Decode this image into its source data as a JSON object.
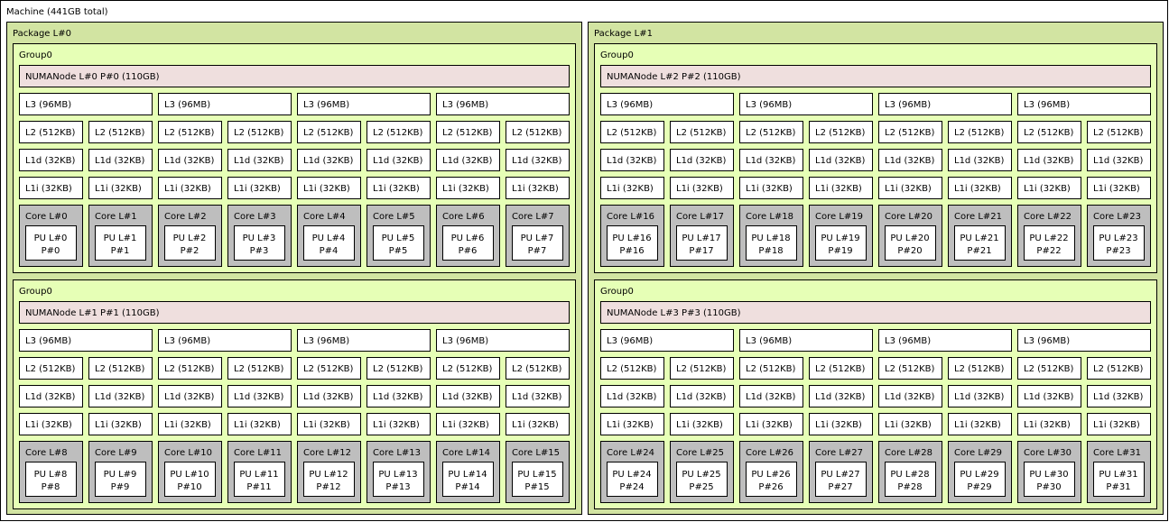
{
  "machine": {
    "label": "Machine (441GB total)",
    "packages": [
      {
        "label": "Package L#0",
        "groups": [
          {
            "label": "Group0",
            "numa": "NUMANode L#0 P#0 (110GB)",
            "l3": [
              "L3 (96MB)",
              "L3 (96MB)",
              "L3 (96MB)",
              "L3 (96MB)"
            ],
            "l2": [
              "L2 (512KB)",
              "L2 (512KB)",
              "L2 (512KB)",
              "L2 (512KB)",
              "L2 (512KB)",
              "L2 (512KB)",
              "L2 (512KB)",
              "L2 (512KB)"
            ],
            "l1d": [
              "L1d (32KB)",
              "L1d (32KB)",
              "L1d (32KB)",
              "L1d (32KB)",
              "L1d (32KB)",
              "L1d (32KB)",
              "L1d (32KB)",
              "L1d (32KB)"
            ],
            "l1i": [
              "L1i (32KB)",
              "L1i (32KB)",
              "L1i (32KB)",
              "L1i (32KB)",
              "L1i (32KB)",
              "L1i (32KB)",
              "L1i (32KB)",
              "L1i (32KB)"
            ],
            "cores": [
              {
                "label": "Core L#0",
                "pu": [
                  "PU L#0",
                  "P#0"
                ]
              },
              {
                "label": "Core L#1",
                "pu": [
                  "PU L#1",
                  "P#1"
                ]
              },
              {
                "label": "Core L#2",
                "pu": [
                  "PU L#2",
                  "P#2"
                ]
              },
              {
                "label": "Core L#3",
                "pu": [
                  "PU L#3",
                  "P#3"
                ]
              },
              {
                "label": "Core L#4",
                "pu": [
                  "PU L#4",
                  "P#4"
                ]
              },
              {
                "label": "Core L#5",
                "pu": [
                  "PU L#5",
                  "P#5"
                ]
              },
              {
                "label": "Core L#6",
                "pu": [
                  "PU L#6",
                  "P#6"
                ]
              },
              {
                "label": "Core L#7",
                "pu": [
                  "PU L#7",
                  "P#7"
                ]
              }
            ]
          },
          {
            "label": "Group0",
            "numa": "NUMANode L#1 P#1 (110GB)",
            "l3": [
              "L3 (96MB)",
              "L3 (96MB)",
              "L3 (96MB)",
              "L3 (96MB)"
            ],
            "l2": [
              "L2 (512KB)",
              "L2 (512KB)",
              "L2 (512KB)",
              "L2 (512KB)",
              "L2 (512KB)",
              "L2 (512KB)",
              "L2 (512KB)",
              "L2 (512KB)"
            ],
            "l1d": [
              "L1d (32KB)",
              "L1d (32KB)",
              "L1d (32KB)",
              "L1d (32KB)",
              "L1d (32KB)",
              "L1d (32KB)",
              "L1d (32KB)",
              "L1d (32KB)"
            ],
            "l1i": [
              "L1i (32KB)",
              "L1i (32KB)",
              "L1i (32KB)",
              "L1i (32KB)",
              "L1i (32KB)",
              "L1i (32KB)",
              "L1i (32KB)",
              "L1i (32KB)"
            ],
            "cores": [
              {
                "label": "Core L#8",
                "pu": [
                  "PU L#8",
                  "P#8"
                ]
              },
              {
                "label": "Core L#9",
                "pu": [
                  "PU L#9",
                  "P#9"
                ]
              },
              {
                "label": "Core L#10",
                "pu": [
                  "PU L#10",
                  "P#10"
                ]
              },
              {
                "label": "Core L#11",
                "pu": [
                  "PU L#11",
                  "P#11"
                ]
              },
              {
                "label": "Core L#12",
                "pu": [
                  "PU L#12",
                  "P#12"
                ]
              },
              {
                "label": "Core L#13",
                "pu": [
                  "PU L#13",
                  "P#13"
                ]
              },
              {
                "label": "Core L#14",
                "pu": [
                  "PU L#14",
                  "P#14"
                ]
              },
              {
                "label": "Core L#15",
                "pu": [
                  "PU L#15",
                  "P#15"
                ]
              }
            ]
          }
        ]
      },
      {
        "label": "Package L#1",
        "groups": [
          {
            "label": "Group0",
            "numa": "NUMANode L#2 P#2 (110GB)",
            "l3": [
              "L3 (96MB)",
              "L3 (96MB)",
              "L3 (96MB)",
              "L3 (96MB)"
            ],
            "l2": [
              "L2 (512KB)",
              "L2 (512KB)",
              "L2 (512KB)",
              "L2 (512KB)",
              "L2 (512KB)",
              "L2 (512KB)",
              "L2 (512KB)",
              "L2 (512KB)"
            ],
            "l1d": [
              "L1d (32KB)",
              "L1d (32KB)",
              "L1d (32KB)",
              "L1d (32KB)",
              "L1d (32KB)",
              "L1d (32KB)",
              "L1d (32KB)",
              "L1d (32KB)"
            ],
            "l1i": [
              "L1i (32KB)",
              "L1i (32KB)",
              "L1i (32KB)",
              "L1i (32KB)",
              "L1i (32KB)",
              "L1i (32KB)",
              "L1i (32KB)",
              "L1i (32KB)"
            ],
            "cores": [
              {
                "label": "Core L#16",
                "pu": [
                  "PU L#16",
                  "P#16"
                ]
              },
              {
                "label": "Core L#17",
                "pu": [
                  "PU L#17",
                  "P#17"
                ]
              },
              {
                "label": "Core L#18",
                "pu": [
                  "PU L#18",
                  "P#18"
                ]
              },
              {
                "label": "Core L#19",
                "pu": [
                  "PU L#19",
                  "P#19"
                ]
              },
              {
                "label": "Core L#20",
                "pu": [
                  "PU L#20",
                  "P#20"
                ]
              },
              {
                "label": "Core L#21",
                "pu": [
                  "PU L#21",
                  "P#21"
                ]
              },
              {
                "label": "Core L#22",
                "pu": [
                  "PU L#22",
                  "P#22"
                ]
              },
              {
                "label": "Core L#23",
                "pu": [
                  "PU L#23",
                  "P#23"
                ]
              }
            ]
          },
          {
            "label": "Group0",
            "numa": "NUMANode L#3 P#3 (110GB)",
            "l3": [
              "L3 (96MB)",
              "L3 (96MB)",
              "L3 (96MB)",
              "L3 (96MB)"
            ],
            "l2": [
              "L2 (512KB)",
              "L2 (512KB)",
              "L2 (512KB)",
              "L2 (512KB)",
              "L2 (512KB)",
              "L2 (512KB)",
              "L2 (512KB)",
              "L2 (512KB)"
            ],
            "l1d": [
              "L1d (32KB)",
              "L1d (32KB)",
              "L1d (32KB)",
              "L1d (32KB)",
              "L1d (32KB)",
              "L1d (32KB)",
              "L1d (32KB)",
              "L1d (32KB)"
            ],
            "l1i": [
              "L1i (32KB)",
              "L1i (32KB)",
              "L1i (32KB)",
              "L1i (32KB)",
              "L1i (32KB)",
              "L1i (32KB)",
              "L1i (32KB)",
              "L1i (32KB)"
            ],
            "cores": [
              {
                "label": "Core L#24",
                "pu": [
                  "PU L#24",
                  "P#24"
                ]
              },
              {
                "label": "Core L#25",
                "pu": [
                  "PU L#25",
                  "P#25"
                ]
              },
              {
                "label": "Core L#26",
                "pu": [
                  "PU L#26",
                  "P#26"
                ]
              },
              {
                "label": "Core L#27",
                "pu": [
                  "PU L#27",
                  "P#27"
                ]
              },
              {
                "label": "Core L#28",
                "pu": [
                  "PU L#28",
                  "P#28"
                ]
              },
              {
                "label": "Core L#29",
                "pu": [
                  "PU L#29",
                  "P#29"
                ]
              },
              {
                "label": "Core L#30",
                "pu": [
                  "PU L#30",
                  "P#30"
                ]
              },
              {
                "label": "Core L#31",
                "pu": [
                  "PU L#31",
                  "P#31"
                ]
              }
            ]
          }
        ]
      }
    ]
  }
}
